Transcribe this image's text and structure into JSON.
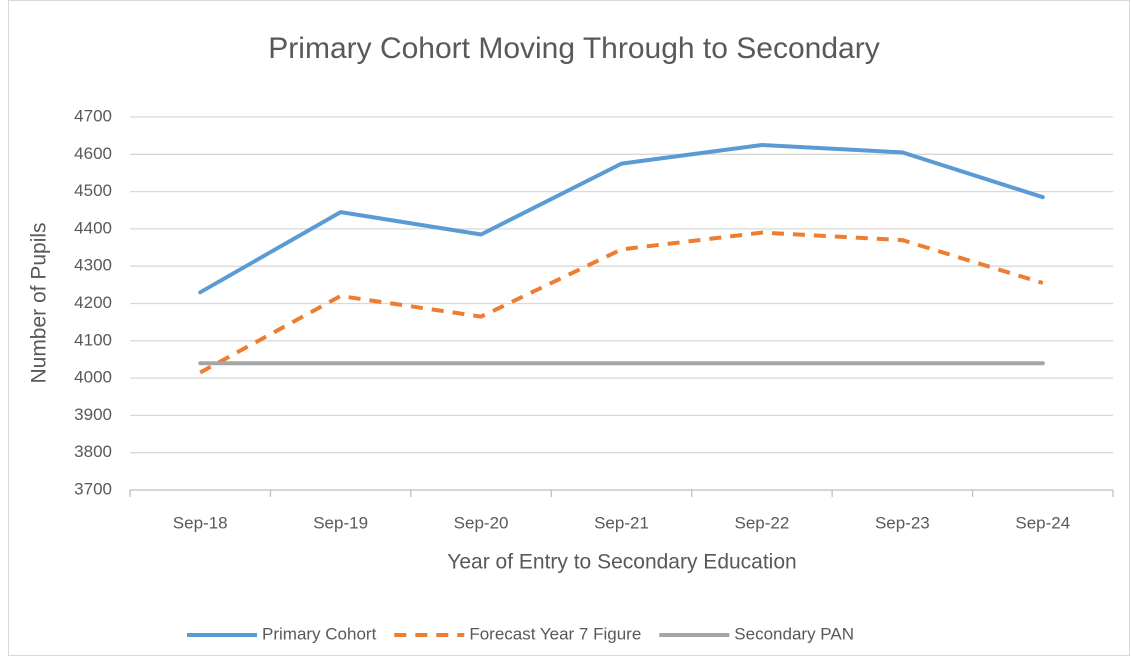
{
  "chart_data": {
    "type": "line",
    "title": "Primary Cohort Moving Through to Secondary",
    "x_label": "Year of Entry to Secondary Education",
    "y_label": "Number of Pupils",
    "categories": [
      "Sep-18",
      "Sep-19",
      "Sep-20",
      "Sep-21",
      "Sep-22",
      "Sep-23",
      "Sep-24"
    ],
    "series": [
      {
        "name": "Primary Cohort",
        "color": "#5b9bd5",
        "dashed": false,
        "values": [
          4230,
          4445,
          4385,
          4575,
          4625,
          4605,
          4485
        ]
      },
      {
        "name": "Forecast Year 7 Figure",
        "color": "#ed7d31",
        "dashed": true,
        "values": [
          4015,
          4220,
          4165,
          4345,
          4390,
          4370,
          4255
        ]
      },
      {
        "name": "Secondary PAN",
        "color": "#a5a5a5",
        "dashed": false,
        "values": [
          4040,
          4040,
          4040,
          4040,
          4040,
          4040,
          4040
        ]
      }
    ],
    "ylim": [
      3700,
      4700
    ],
    "yticks": [
      3700,
      3800,
      3900,
      4000,
      4100,
      4200,
      4300,
      4400,
      4500,
      4600,
      4700
    ],
    "grid": true,
    "legend": "bottom"
  }
}
